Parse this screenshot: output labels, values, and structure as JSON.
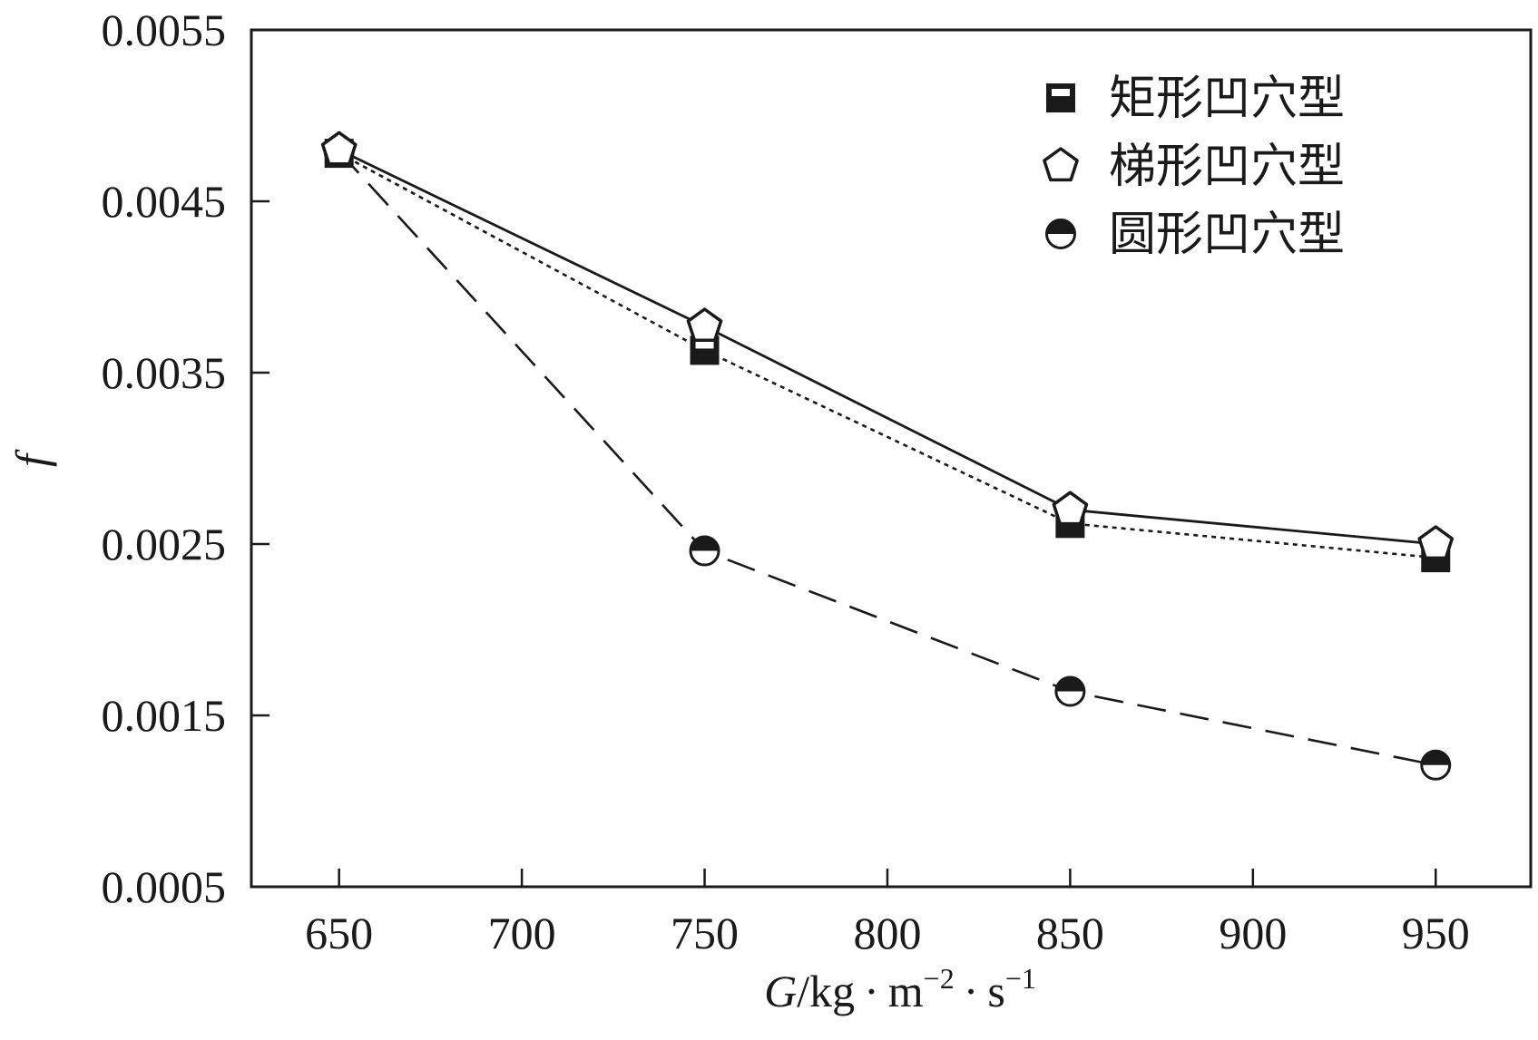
{
  "chart_data": {
    "type": "line",
    "xlabel": {
      "G": "G",
      "unit": "/kg · m",
      "exp1": "−2",
      "mid": " · s",
      "exp2": "−1"
    },
    "ylabel": "f",
    "xlim": [
      626,
      976
    ],
    "ylim": [
      0.0005,
      0.0055
    ],
    "xticks": [
      650,
      700,
      750,
      800,
      850,
      900,
      950
    ],
    "xtick_labels": [
      "650",
      "700",
      "750",
      "800",
      "850",
      "900",
      "950"
    ],
    "yticks": [
      0.0005,
      0.0015,
      0.0025,
      0.0035,
      0.0045,
      0.0055
    ],
    "ytick_labels": [
      "0.0005",
      "0.0015",
      "0.0025",
      "0.0035",
      "0.0045",
      "0.0055"
    ],
    "legend_position": "top-right",
    "series": [
      {
        "name": "矩形凹穴型",
        "marker": "square-half",
        "line": "dotted",
        "x": [
          650,
          750,
          850,
          950
        ],
        "y": [
          0.00478,
          0.00363,
          0.00262,
          0.00242
        ]
      },
      {
        "name": "梯形凹穴型",
        "marker": "pentagon",
        "line": "solid",
        "x": [
          650,
          750,
          850,
          950
        ],
        "y": [
          0.0048,
          0.00377,
          0.0027,
          0.0025
        ]
      },
      {
        "name": "圆形凹穴型",
        "marker": "circle-half",
        "line": "dashed",
        "x": [
          650,
          750,
          850,
          950
        ],
        "y": [
          0.00479,
          0.00246,
          0.00164,
          0.00121
        ]
      }
    ]
  }
}
